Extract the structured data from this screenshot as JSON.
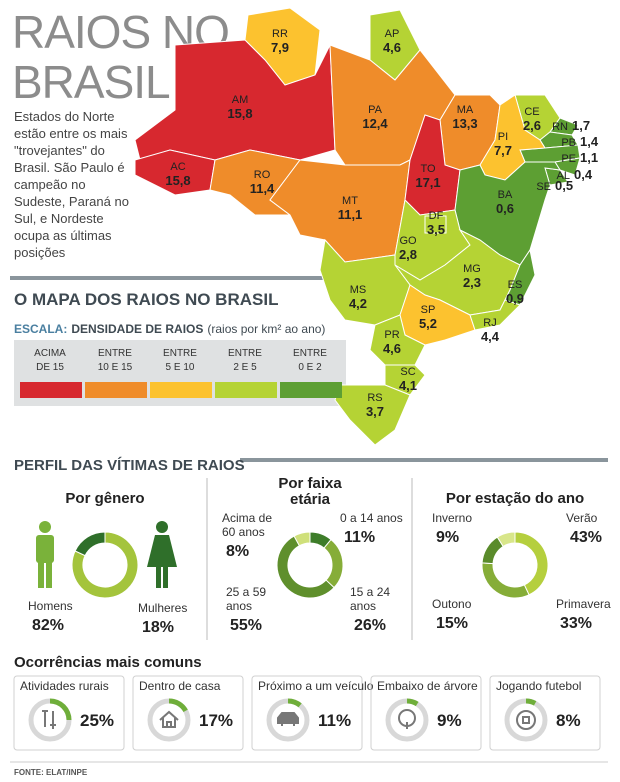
{
  "header": {
    "title_lines": [
      "RAIOS NO",
      "BRASIL"
    ],
    "intro": "Estados do Norte estão entre os mais \"trovejantes\" do Brasil. São Paulo é campeão no Sudeste, Paraná no Sul, e Nordeste ocupa as últimas posições"
  },
  "map": {
    "title": "O MAPA DOS RAIOS NO BRASIL",
    "scale": {
      "label": "ESCALA:",
      "name": "DENSIDADE DE RAIOS",
      "unit": "(raios por km² ao ano)",
      "classes": [
        {
          "label_lines": [
            "ACIMA",
            "DE 15"
          ],
          "color": "#d7282f"
        },
        {
          "label_lines": [
            "ENTRE",
            "10 E 15"
          ],
          "color": "#ef8c2a"
        },
        {
          "label_lines": [
            "ENTRE",
            "5 E 10"
          ],
          "color": "#fcc22f"
        },
        {
          "label_lines": [
            "ENTRE",
            "2 E 5"
          ],
          "color": "#b5d334"
        },
        {
          "label_lines": [
            "ENTRE",
            "0 E 2"
          ],
          "color": "#5d9f33"
        }
      ]
    },
    "states": [
      {
        "name": "RR",
        "value": 7.9,
        "value_label": "7,9",
        "color": "#fcc22f"
      },
      {
        "name": "AP",
        "value": 4.6,
        "value_label": "4,6",
        "color": "#b5d334"
      },
      {
        "name": "AM",
        "value": 15.8,
        "value_label": "15,8",
        "color": "#d7282f"
      },
      {
        "name": "PA",
        "value": 12.4,
        "value_label": "12,4",
        "color": "#ef8c2a"
      },
      {
        "name": "MA",
        "value": 13.3,
        "value_label": "13,3",
        "color": "#ef8c2a"
      },
      {
        "name": "CE",
        "value": 2.6,
        "value_label": "2,6",
        "color": "#b5d334"
      },
      {
        "name": "RN",
        "value": 1.7,
        "value_label": "1,7",
        "color": "#5d9f33"
      },
      {
        "name": "PB",
        "value": 1.4,
        "value_label": "1,4",
        "color": "#5d9f33"
      },
      {
        "name": "PE",
        "value": 1.1,
        "value_label": "1,1",
        "color": "#5d9f33"
      },
      {
        "name": "AL",
        "value": 0.4,
        "value_label": "0,4",
        "color": "#5d9f33"
      },
      {
        "name": "SE",
        "value": 0.5,
        "value_label": "0,5",
        "color": "#5d9f33"
      },
      {
        "name": "PI",
        "value": 7.7,
        "value_label": "7,7",
        "color": "#fcc22f"
      },
      {
        "name": "AC",
        "value": 15.8,
        "value_label": "15,8",
        "color": "#d7282f"
      },
      {
        "name": "RO",
        "value": 11.4,
        "value_label": "11,4",
        "color": "#ef8c2a"
      },
      {
        "name": "MT",
        "value": 11.1,
        "value_label": "11,1",
        "color": "#ef8c2a"
      },
      {
        "name": "TO",
        "value": 17.1,
        "value_label": "17,1",
        "color": "#d7282f"
      },
      {
        "name": "BA",
        "value": 0.6,
        "value_label": "0,6",
        "color": "#5d9f33"
      },
      {
        "name": "GO",
        "value": 2.8,
        "value_label": "2,8",
        "color": "#b5d334"
      },
      {
        "name": "DF",
        "value": 3.5,
        "value_label": "3,5",
        "color": "#b5d334"
      },
      {
        "name": "MG",
        "value": 2.3,
        "value_label": "2,3",
        "color": "#b5d334"
      },
      {
        "name": "ES",
        "value": 0.9,
        "value_label": "0,9",
        "color": "#5d9f33"
      },
      {
        "name": "MS",
        "value": 4.2,
        "value_label": "4,2",
        "color": "#b5d334"
      },
      {
        "name": "SP",
        "value": 5.2,
        "value_label": "5,2",
        "color": "#fcc22f"
      },
      {
        "name": "RJ",
        "value": 4.4,
        "value_label": "4,4",
        "color": "#b5d334"
      },
      {
        "name": "PR",
        "value": 4.6,
        "value_label": "4,6",
        "color": "#b5d334"
      },
      {
        "name": "SC",
        "value": 4.1,
        "value_label": "4,1",
        "color": "#b5d334"
      },
      {
        "name": "RS",
        "value": 3.7,
        "value_label": "3,7",
        "color": "#b5d334"
      }
    ]
  },
  "victims": {
    "title": "PERFIL DAS VÍTIMAS DE RAIOS",
    "panels": [
      {
        "title_lines": [
          "Por gênero"
        ],
        "items": [
          {
            "label_lines": [
              "Homens"
            ],
            "value": 82,
            "value_label": "82%",
            "color": "#a4c43c"
          },
          {
            "label_lines": [
              "Mulheres"
            ],
            "value": 18,
            "value_label": "18%",
            "color": "#2f6f2a"
          }
        ]
      },
      {
        "title_lines": [
          "Por faixa",
          "etária"
        ],
        "items": [
          {
            "label_lines": [
              "0 a 14 anos"
            ],
            "value": 11,
            "value_label": "11%",
            "color": "#3e7d2a"
          },
          {
            "label_lines": [
              "15 a 24",
              "anos"
            ],
            "value": 26,
            "value_label": "26%",
            "color": "#86ad38"
          },
          {
            "label_lines": [
              "25 a 59",
              "anos"
            ],
            "value": 55,
            "value_label": "55%",
            "color": "#5f8f2c"
          },
          {
            "label_lines": [
              "Acima de",
              "60 anos"
            ],
            "value": 8,
            "value_label": "8%",
            "color": "#cfe07a"
          }
        ]
      },
      {
        "title_lines": [
          "Por estação do ano"
        ],
        "items": [
          {
            "label_lines": [
              "Verão"
            ],
            "value": 43,
            "value_label": "43%",
            "color": "#b5cf3e"
          },
          {
            "label_lines": [
              "Primavera"
            ],
            "value": 33,
            "value_label": "33%",
            "color": "#86ad38"
          },
          {
            "label_lines": [
              "Outono"
            ],
            "value": 15,
            "value_label": "15%",
            "color": "#5a8b2b"
          },
          {
            "label_lines": [
              "Inverno"
            ],
            "value": 9,
            "value_label": "9%",
            "color": "#d8e68a"
          }
        ]
      }
    ]
  },
  "occurrences": {
    "title": "Ocorrências mais comuns",
    "color": "#6fae3a",
    "items": [
      {
        "label": "Atividades rurais",
        "value": 25,
        "value_label": "25%"
      },
      {
        "label": "Dentro de casa",
        "value": 17,
        "value_label": "17%"
      },
      {
        "label": "Próximo a um veículo",
        "value": 11,
        "value_label": "11%"
      },
      {
        "label": "Embaixo de árvore",
        "value": 9,
        "value_label": "9%"
      },
      {
        "label": "Jogando futebol",
        "value": 8,
        "value_label": "8%"
      }
    ]
  },
  "source": "FONTE: ELAT/INPE"
}
